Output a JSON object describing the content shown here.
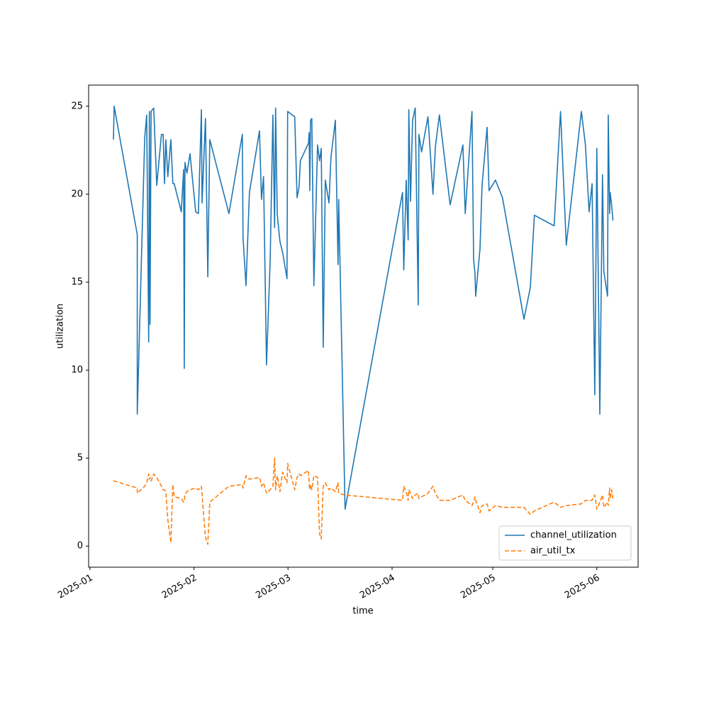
{
  "chart_data": {
    "type": "line",
    "xlabel": "time",
    "ylabel": "utilization",
    "x": [
      7.0,
      7.2,
      14.1,
      14.1,
      16.3,
      16.9,
      17.5,
      17.7,
      17.9,
      18.2,
      19.0,
      19.9,
      21.3,
      21.8,
      22.2,
      22.6,
      23.2,
      24.1,
      24.7,
      25.1,
      27.2,
      27.9,
      28.1,
      28.3,
      28.9,
      29.8,
      31.5,
      32.3,
      33.2,
      33.4,
      34.4,
      35.1,
      35.7,
      41.4,
      45.4,
      45.6,
      46.5,
      47.5,
      50.5,
      50.7,
      51.1,
      51.7,
      52.6,
      53.7,
      54.5,
      55.0,
      55.3,
      55.8,
      56.6,
      57.4,
      58.7,
      58.9,
      61.0,
      61.7,
      62.3,
      62.7,
      65.1,
      65.3,
      65.5,
      65.7,
      66.1,
      66.7,
      67.8,
      68.4,
      68.9,
      69.5,
      70.1,
      71.2,
      71.8,
      73.1,
      73.9,
      74.1,
      76.0,
      93.1,
      93.5,
      94.2,
      94.8,
      95.0,
      95.5,
      96.1,
      96.9,
      97.8,
      98.0,
      98.8,
      100.7,
      102.2,
      102.9,
      104.1,
      107.3,
      111.1,
      111.8,
      113.8,
      114.3,
      114.7,
      114.9,
      116.2,
      116.8,
      118.3,
      118.9,
      120.8,
      122.9,
      129.3,
      131.2,
      132.4,
      138.3,
      140.2,
      141.9,
      146.4,
      147.6,
      148.7,
      149.6,
      150.4,
      151.0,
      151.9,
      152.7,
      153.1,
      154.2,
      154.4,
      154.8,
      155.0,
      155.4,
      155.8
    ],
    "series": [
      {
        "name": "channel_utilization",
        "color": "#1f77b4",
        "linestyle": "solid",
        "values": [
          23.1,
          25.0,
          17.7,
          7.5,
          23.2,
          24.5,
          11.6,
          24.7,
          12.6,
          24.7,
          24.9,
          20.5,
          23.4,
          23.4,
          20.6,
          23.1,
          21.0,
          23.1,
          20.6,
          20.6,
          19.0,
          21.4,
          10.1,
          21.8,
          21.2,
          22.3,
          19.0,
          18.9,
          24.8,
          19.5,
          24.3,
          15.3,
          23.1,
          18.9,
          23.4,
          17.5,
          14.8,
          20.1,
          23.6,
          22.3,
          19.7,
          21.0,
          10.3,
          16.3,
          24.5,
          18.1,
          24.9,
          18.8,
          17.3,
          16.7,
          15.2,
          24.7,
          24.4,
          19.8,
          20.4,
          21.9,
          22.9,
          23.5,
          20.2,
          24.2,
          24.3,
          14.8,
          22.8,
          21.9,
          22.6,
          11.3,
          20.8,
          19.5,
          22.1,
          24.2,
          16.0,
          19.7,
          2.1,
          20.1,
          15.7,
          20.8,
          17.4,
          24.8,
          19.6,
          24.2,
          24.9,
          13.7,
          23.4,
          22.4,
          24.4,
          20.0,
          22.7,
          24.5,
          19.4,
          22.8,
          18.9,
          24.7,
          16.3,
          15.5,
          14.2,
          16.9,
          20.5,
          23.8,
          20.2,
          20.8,
          19.8,
          12.9,
          14.7,
          18.8,
          18.2,
          24.7,
          17.1,
          24.7,
          22.8,
          19.0,
          20.6,
          8.6,
          22.6,
          7.5,
          21.1,
          15.6,
          14.2,
          24.5,
          18.9,
          20.1,
          19.4,
          18.5
        ]
      },
      {
        "name": "air_util_tx",
        "color": "#ff7f0e",
        "linestyle": "dashed",
        "values": [
          3.7,
          3.7,
          3.3,
          3.0,
          3.4,
          3.6,
          4.1,
          3.8,
          3.9,
          3.7,
          4.1,
          3.9,
          3.4,
          3.2,
          3.2,
          3.1,
          1.5,
          0.2,
          3.5,
          2.8,
          2.7,
          2.5,
          2.6,
          2.9,
          3.1,
          3.2,
          3.3,
          3.2,
          3.4,
          2.9,
          0.5,
          0.1,
          2.5,
          3.4,
          3.5,
          3.3,
          4.0,
          3.8,
          3.9,
          3.8,
          3.4,
          3.6,
          3.0,
          3.2,
          3.4,
          5.0,
          3.2,
          4.0,
          3.1,
          4.2,
          3.6,
          4.7,
          3.2,
          3.9,
          4.1,
          4.0,
          4.3,
          3.6,
          3.2,
          3.5,
          3.2,
          4.0,
          3.9,
          0.7,
          0.4,
          3.4,
          3.6,
          3.2,
          3.3,
          3.1,
          3.6,
          3.0,
          2.9,
          2.6,
          3.4,
          3.1,
          2.6,
          3.2,
          3.0,
          2.7,
          2.9,
          3.0,
          2.7,
          2.8,
          3.0,
          3.4,
          3.0,
          2.6,
          2.6,
          2.9,
          2.6,
          2.3,
          2.5,
          2.8,
          2.6,
          1.9,
          2.3,
          2.4,
          2.0,
          2.3,
          2.2,
          2.2,
          1.8,
          2.0,
          2.5,
          2.2,
          2.3,
          2.4,
          2.6,
          2.6,
          2.6,
          2.9,
          2.1,
          2.5,
          2.9,
          2.2,
          2.5,
          2.3,
          3.3,
          2.7,
          3.2,
          2.7
        ]
      }
    ],
    "xlim": [
      -0.4,
      163.3
    ],
    "xticks": [
      {
        "value": 0,
        "label": "2025-01"
      },
      {
        "value": 31,
        "label": "2025-02"
      },
      {
        "value": 59,
        "label": "2025-03"
      },
      {
        "value": 90,
        "label": "2025-04"
      },
      {
        "value": 120,
        "label": "2025-05"
      },
      {
        "value": 151,
        "label": "2025-06"
      }
    ],
    "ylim": [
      -1.2,
      26.2
    ],
    "yticks": [
      0,
      5,
      10,
      15,
      20,
      25
    ],
    "grid": false,
    "legend": "lower right"
  }
}
